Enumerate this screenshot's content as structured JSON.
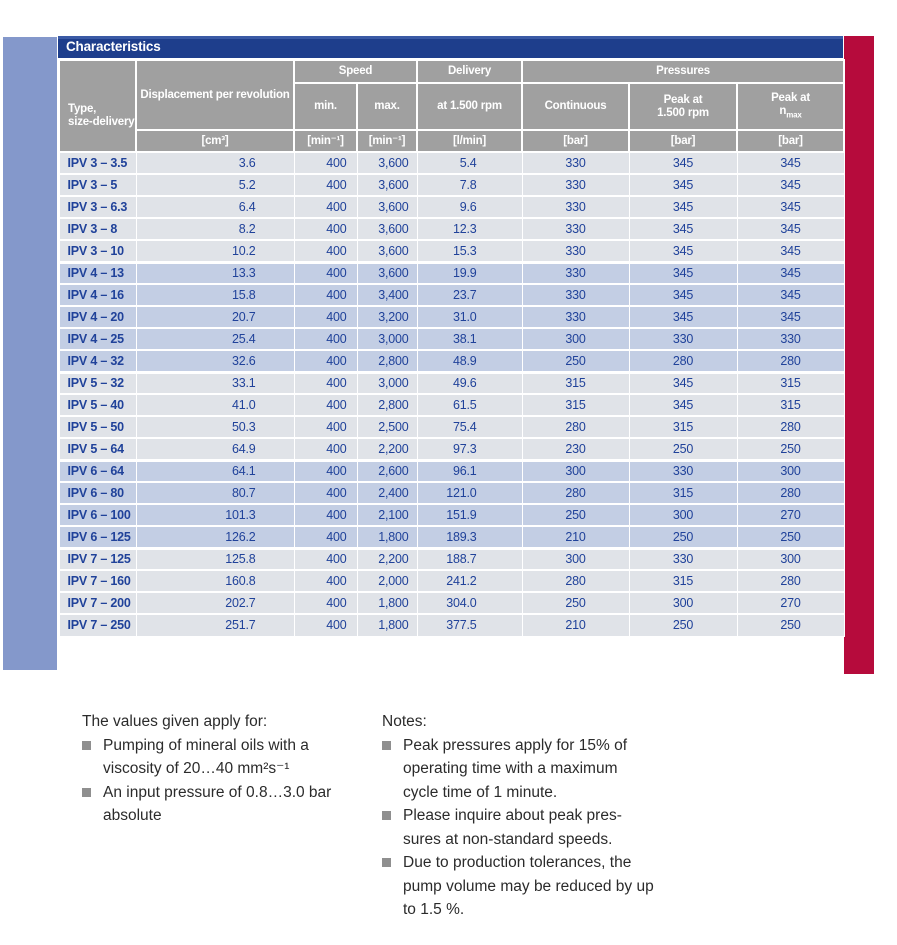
{
  "colors": {
    "accent_navy": "#1E3E8C",
    "header_gray": "#A0A0A0",
    "row_gray": "#E0E3E8",
    "row_blue": "#C3CEE4",
    "left_bar": "#8498CB",
    "right_bar": "#B60B3C",
    "value_blue": "#20429A"
  },
  "table": {
    "title": "Characteristics",
    "groups": {
      "speed": "Speed",
      "delivery": "Delivery",
      "pressures": "Pressures"
    },
    "columns": {
      "type_l1": "Type,",
      "type_l2": "size-delivery",
      "displacement": "Displacement per revolution",
      "speed_min": "min.",
      "speed_max": "max.",
      "delivery_rpm": "at 1.500 rpm",
      "continuous": "Continuous",
      "peak1500_l1": "Peak at",
      "peak1500_l2": "1.500 rpm",
      "peak_nmax_l1": "Peak at",
      "peak_nmax_base": "n",
      "peak_nmax_sub": "max"
    },
    "units": [
      "[cm³]",
      "[min⁻¹]",
      "[min⁻¹]",
      "[l/min]",
      "[bar]",
      "[bar]",
      "[bar]"
    ],
    "rows": [
      {
        "type": "IPV 3 – 3.5",
        "displacement": "3.6",
        "speed_min": "400",
        "speed_max": "3,600",
        "delivery": "5.4",
        "p_continuous": "330",
        "p_peak_1500": "345",
        "p_peak_nmax": "345"
      },
      {
        "type": "IPV 3 – 5",
        "displacement": "5.2",
        "speed_min": "400",
        "speed_max": "3,600",
        "delivery": "7.8",
        "p_continuous": "330",
        "p_peak_1500": "345",
        "p_peak_nmax": "345"
      },
      {
        "type": "IPV 3 – 6.3",
        "displacement": "6.4",
        "speed_min": "400",
        "speed_max": "3,600",
        "delivery": "9.6",
        "p_continuous": "330",
        "p_peak_1500": "345",
        "p_peak_nmax": "345"
      },
      {
        "type": "IPV 3 – 8",
        "displacement": "8.2",
        "speed_min": "400",
        "speed_max": "3,600",
        "delivery": "12.3",
        "p_continuous": "330",
        "p_peak_1500": "345",
        "p_peak_nmax": "345"
      },
      {
        "type": "IPV 3 – 10",
        "displacement": "10.2",
        "speed_min": "400",
        "speed_max": "3,600",
        "delivery": "15.3",
        "p_continuous": "330",
        "p_peak_1500": "345",
        "p_peak_nmax": "345"
      },
      {
        "type": "IPV 4 – 13",
        "displacement": "13.3",
        "speed_min": "400",
        "speed_max": "3,600",
        "delivery": "19.9",
        "p_continuous": "330",
        "p_peak_1500": "345",
        "p_peak_nmax": "345"
      },
      {
        "type": "IPV 4 – 16",
        "displacement": "15.8",
        "speed_min": "400",
        "speed_max": "3,400",
        "delivery": "23.7",
        "p_continuous": "330",
        "p_peak_1500": "345",
        "p_peak_nmax": "345"
      },
      {
        "type": "IPV 4 – 20",
        "displacement": "20.7",
        "speed_min": "400",
        "speed_max": "3,200",
        "delivery": "31.0",
        "p_continuous": "330",
        "p_peak_1500": "345",
        "p_peak_nmax": "345"
      },
      {
        "type": "IPV 4 – 25",
        "displacement": "25.4",
        "speed_min": "400",
        "speed_max": "3,000",
        "delivery": "38.1",
        "p_continuous": "300",
        "p_peak_1500": "330",
        "p_peak_nmax": "330"
      },
      {
        "type": "IPV 4 – 32",
        "displacement": "32.6",
        "speed_min": "400",
        "speed_max": "2,800",
        "delivery": "48.9",
        "p_continuous": "250",
        "p_peak_1500": "280",
        "p_peak_nmax": "280"
      },
      {
        "type": "IPV 5 – 32",
        "displacement": "33.1",
        "speed_min": "400",
        "speed_max": "3,000",
        "delivery": "49.6",
        "p_continuous": "315",
        "p_peak_1500": "345",
        "p_peak_nmax": "315"
      },
      {
        "type": "IPV 5 – 40",
        "displacement": "41.0",
        "speed_min": "400",
        "speed_max": "2,800",
        "delivery": "61.5",
        "p_continuous": "315",
        "p_peak_1500": "345",
        "p_peak_nmax": "315"
      },
      {
        "type": "IPV 5 – 50",
        "displacement": "50.3",
        "speed_min": "400",
        "speed_max": "2,500",
        "delivery": "75.4",
        "p_continuous": "280",
        "p_peak_1500": "315",
        "p_peak_nmax": "280"
      },
      {
        "type": "IPV 5 – 64",
        "displacement": "64.9",
        "speed_min": "400",
        "speed_max": "2,200",
        "delivery": "97.3",
        "p_continuous": "230",
        "p_peak_1500": "250",
        "p_peak_nmax": "250"
      },
      {
        "type": "IPV 6 – 64",
        "displacement": "64.1",
        "speed_min": "400",
        "speed_max": "2,600",
        "delivery": "96.1",
        "p_continuous": "300",
        "p_peak_1500": "330",
        "p_peak_nmax": "300"
      },
      {
        "type": "IPV 6 – 80",
        "displacement": "80.7",
        "speed_min": "400",
        "speed_max": "2,400",
        "delivery": "121.0",
        "p_continuous": "280",
        "p_peak_1500": "315",
        "p_peak_nmax": "280"
      },
      {
        "type": "IPV 6 – 100",
        "displacement": "101.3",
        "speed_min": "400",
        "speed_max": "2,100",
        "delivery": "151.9",
        "p_continuous": "250",
        "p_peak_1500": "300",
        "p_peak_nmax": "270"
      },
      {
        "type": "IPV 6 – 125",
        "displacement": "126.2",
        "speed_min": "400",
        "speed_max": "1,800",
        "delivery": "189.3",
        "p_continuous": "210",
        "p_peak_1500": "250",
        "p_peak_nmax": "250"
      },
      {
        "type": "IPV 7 – 125",
        "displacement": "125.8",
        "speed_min": "400",
        "speed_max": "2,200",
        "delivery": "188.7",
        "p_continuous": "300",
        "p_peak_1500": "330",
        "p_peak_nmax": "300"
      },
      {
        "type": "IPV 7 – 160",
        "displacement": "160.8",
        "speed_min": "400",
        "speed_max": "2,000",
        "delivery": "241.2",
        "p_continuous": "280",
        "p_peak_1500": "315",
        "p_peak_nmax": "280"
      },
      {
        "type": "IPV 7 – 200",
        "displacement": "202.7",
        "speed_min": "400",
        "speed_max": "1,800",
        "delivery": "304.0",
        "p_continuous": "250",
        "p_peak_1500": "300",
        "p_peak_nmax": "270"
      },
      {
        "type": "IPV 7 – 250",
        "displacement": "251.7",
        "speed_min": "400",
        "speed_max": "1,800",
        "delivery": "377.5",
        "p_continuous": "210",
        "p_peak_1500": "250",
        "p_peak_nmax": "250"
      }
    ]
  },
  "notes_left": {
    "title": "The values given apply for:",
    "items": [
      "Pumping of mineral oils with a viscosity of 20…40 mm²s⁻¹",
      "An input pressure of 0.8…3.0 bar absolute"
    ]
  },
  "notes_right": {
    "title": "Notes:",
    "items": [
      "Peak pressures apply for 15% of operating time with a maximum cycle time of 1 minute.",
      "Please inquire about peak pres-sures at non-standard speeds.",
      "Due to production tolerances, the pump volume may be reduced by up to 1.5 %."
    ]
  }
}
